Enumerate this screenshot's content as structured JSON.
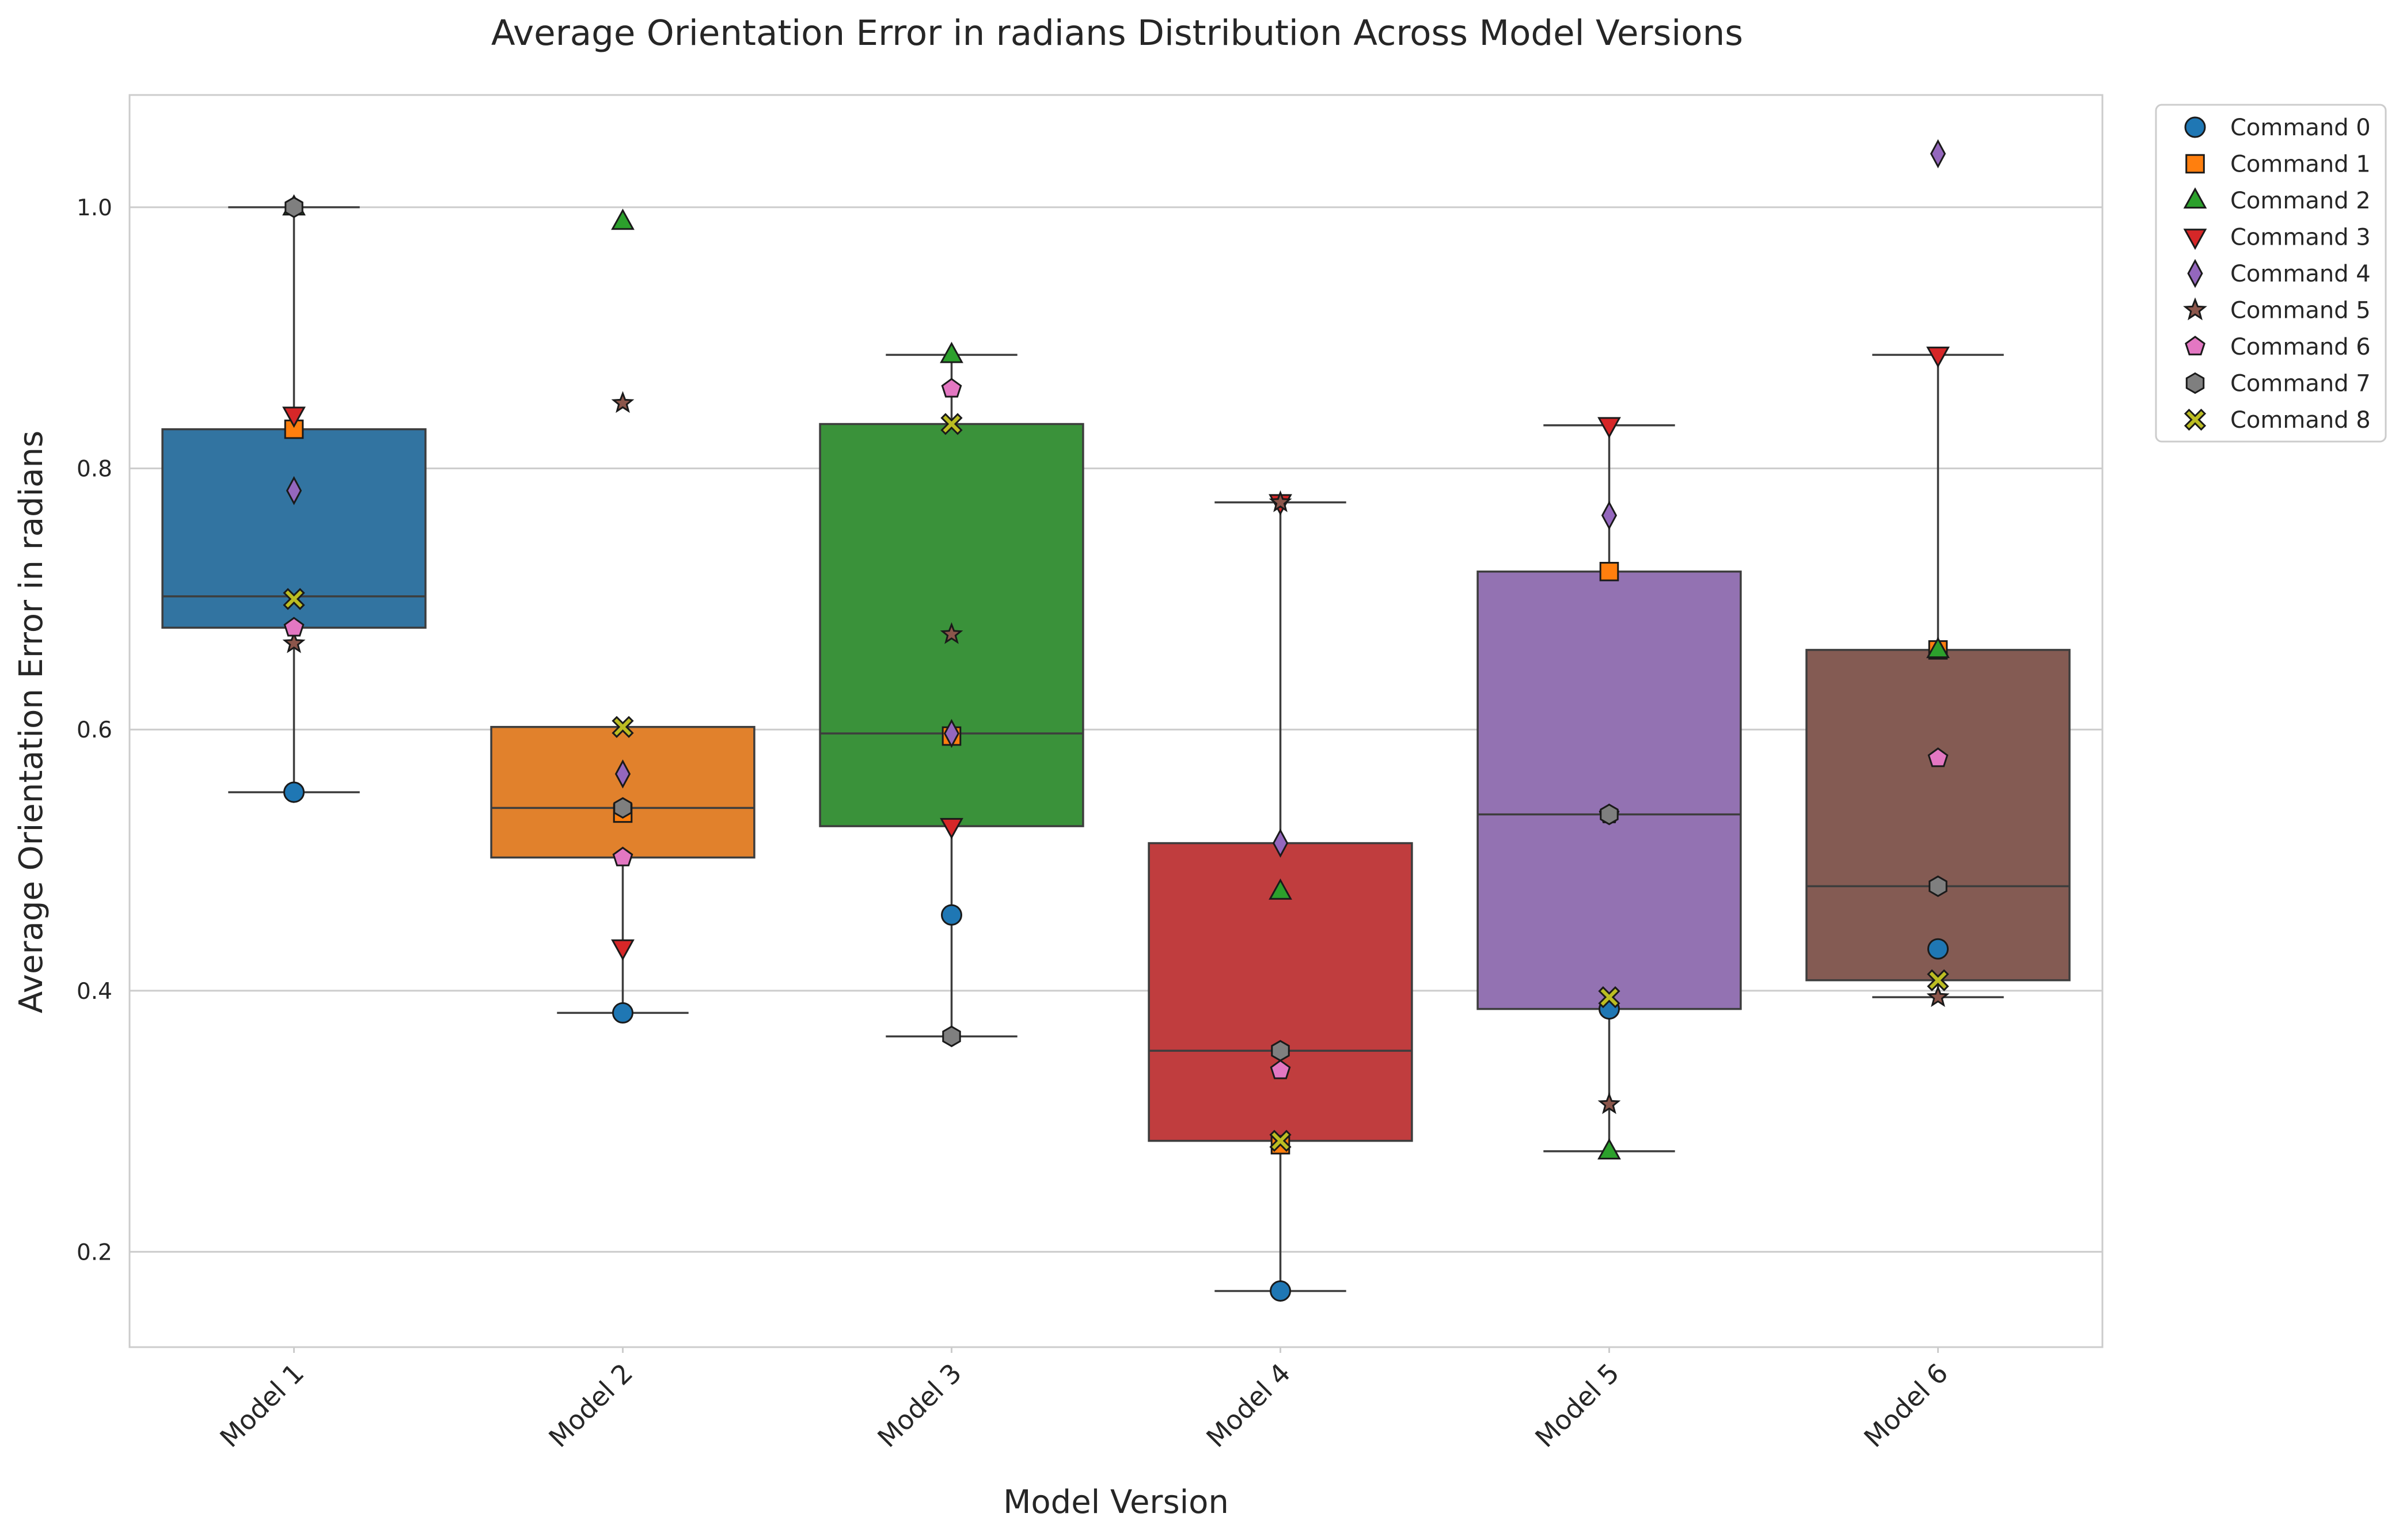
{
  "chart_data": {
    "type": "box",
    "title": "Average Orientation Error in radians Distribution Across Model Versions",
    "xlabel": "Model Version",
    "ylabel": "Average Orientation Error in radians",
    "ylim": [
      0.127,
      1.086
    ],
    "yticks": [
      0.2,
      0.4,
      0.6,
      0.8,
      1.0
    ],
    "ytick_labels": [
      "0.2",
      "0.4",
      "0.6",
      "0.8",
      "1.0"
    ],
    "grid": true,
    "legend_position": "upper-right-outside",
    "categories": [
      "Model 1",
      "Model 2",
      "Model 3",
      "Model 4",
      "Model 5",
      "Model 6"
    ],
    "box_colors": [
      "#3274a1",
      "#e1812c",
      "#3a923a",
      "#c03d3e",
      "#9372b2",
      "#845b53"
    ],
    "boxes": [
      {
        "whisker_low": 0.552,
        "q1": 0.678,
        "median": 0.702,
        "q3": 0.83,
        "whisker_high": 1.0
      },
      {
        "whisker_low": 0.383,
        "q1": 0.502,
        "median": 0.54,
        "q3": 0.602,
        "whisker_high": 0.602
      },
      {
        "whisker_low": 0.365,
        "q1": 0.526,
        "median": 0.597,
        "q3": 0.834,
        "whisker_high": 0.887
      },
      {
        "whisker_low": 0.17,
        "q1": 0.285,
        "median": 0.354,
        "q3": 0.513,
        "whisker_high": 0.774
      },
      {
        "whisker_low": 0.277,
        "q1": 0.386,
        "median": 0.535,
        "q3": 0.721,
        "whisker_high": 0.833
      },
      {
        "whisker_low": 0.395,
        "q1": 0.408,
        "median": 0.48,
        "q3": 0.661,
        "whisker_high": 0.887
      }
    ],
    "series": [
      {
        "name": "Command 0",
        "marker": "circle",
        "color": "#1f77b4",
        "values": [
          0.552,
          0.383,
          0.458,
          0.17,
          0.386,
          0.432
        ]
      },
      {
        "name": "Command 1",
        "marker": "square",
        "color": "#ff7f0e",
        "values": [
          0.83,
          0.536,
          0.595,
          0.282,
          0.721,
          0.661
        ]
      },
      {
        "name": "Command 2",
        "marker": "triangle-up",
        "color": "#2ca02c",
        "values": [
          1.0,
          0.989,
          0.887,
          0.476,
          0.277,
          0.661
        ]
      },
      {
        "name": "Command 3",
        "marker": "triangle-down",
        "color": "#d62728",
        "values": [
          0.841,
          0.433,
          0.526,
          0.774,
          0.833,
          0.887
        ]
      },
      {
        "name": "Command 4",
        "marker": "diamond",
        "color": "#9467bd",
        "values": [
          0.783,
          0.566,
          0.597,
          0.513,
          0.764,
          1.041
        ]
      },
      {
        "name": "Command 5",
        "marker": "star",
        "color": "#8c564b",
        "values": [
          0.666,
          0.85,
          0.673,
          0.774,
          0.313,
          0.395
        ]
      },
      {
        "name": "Command 6",
        "marker": "pentagon",
        "color": "#e377c2",
        "values": [
          0.678,
          0.502,
          0.861,
          0.339,
          0.535,
          0.578
        ]
      },
      {
        "name": "Command 7",
        "marker": "hexagon",
        "color": "#7f7f7f",
        "values": [
          1.0,
          0.54,
          0.365,
          0.354,
          0.535,
          0.48
        ]
      },
      {
        "name": "Command 8",
        "marker": "x",
        "color": "#bcbd22",
        "values": [
          0.7,
          0.602,
          0.834,
          0.285,
          0.395,
          0.408
        ]
      }
    ]
  }
}
